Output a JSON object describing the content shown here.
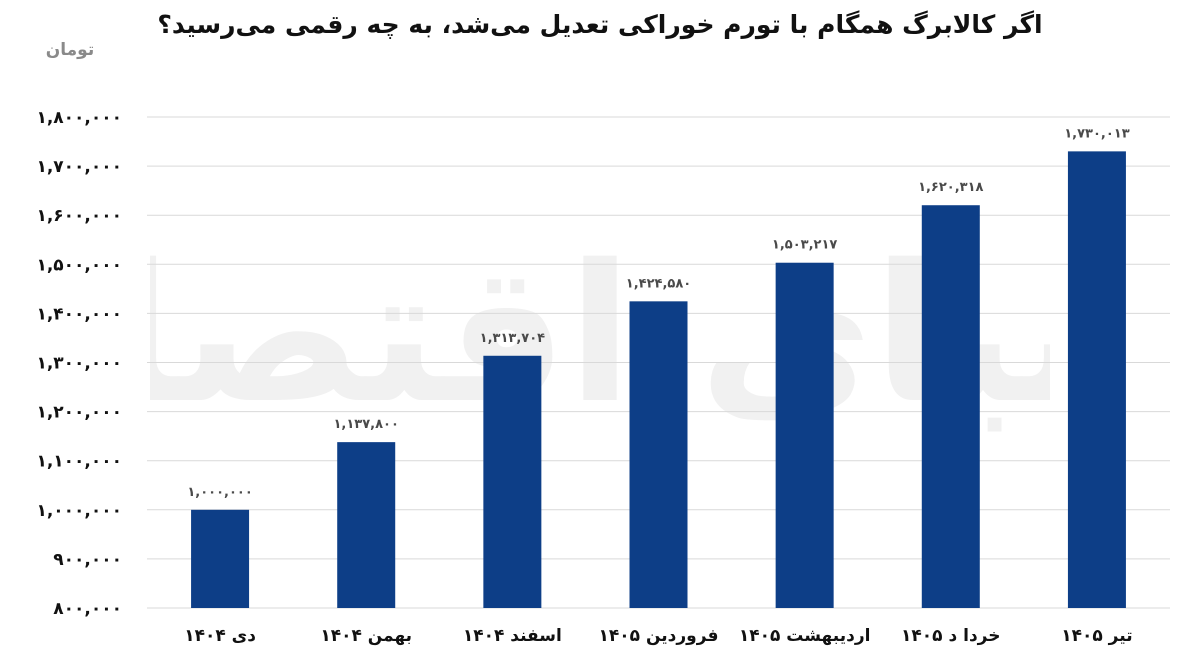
{
  "chart_data": {
    "type": "bar",
    "title": "اگر کالابرگ همگام با تورم خوراکی تعدیل می‌شد، به چه رقمی می‌رسید؟",
    "ylabel": "تومان",
    "xlabel": "",
    "categories": [
      "دی ۱۴۰۴",
      "بهمن ۱۴۰۴",
      "اسفند ۱۴۰۴",
      "فروردین ۱۴۰۵",
      "اردیبهشت ۱۴۰۵",
      "خردا د ۱۴۰۵",
      "تیر ۱۴۰۵"
    ],
    "values": [
      1000000,
      1137800,
      1313704,
      1424580,
      1503217,
      1620318,
      1730013
    ],
    "data_labels": [
      "۱,۰۰۰,۰۰۰",
      "۱,۱۳۷,۸۰۰",
      "۱,۳۱۳,۷۰۴",
      "۱,۴۲۴,۵۸۰",
      "۱,۵۰۳,۲۱۷",
      "۱,۶۲۰,۳۱۸",
      "۱,۷۳۰,۰۱۳"
    ],
    "ylim": [
      800000,
      1800000
    ],
    "yticks": [
      800000,
      900000,
      1000000,
      1100000,
      1200000,
      1300000,
      1400000,
      1500000,
      1600000,
      1700000,
      1800000
    ],
    "ytick_labels": [
      "۸۰۰,۰۰۰",
      "۹۰۰,۰۰۰",
      "۱,۰۰۰,۰۰۰",
      "۱,۱۰۰,۰۰۰",
      "۱,۲۰۰,۰۰۰",
      "۱,۳۰۰,۰۰۰",
      "۱,۴۰۰,۰۰۰",
      "۱,۵۰۰,۰۰۰",
      "۱,۶۰۰,۰۰۰",
      "۱,۷۰۰,۰۰۰",
      "۱,۸۰۰,۰۰۰"
    ],
    "grid": true,
    "legend": "none",
    "bar_color": "#0d3e87",
    "grid_color": "#d9d9d9"
  },
  "watermark": {
    "text": "دنیای اقتصاد",
    "color": "#f1f1f1"
  }
}
